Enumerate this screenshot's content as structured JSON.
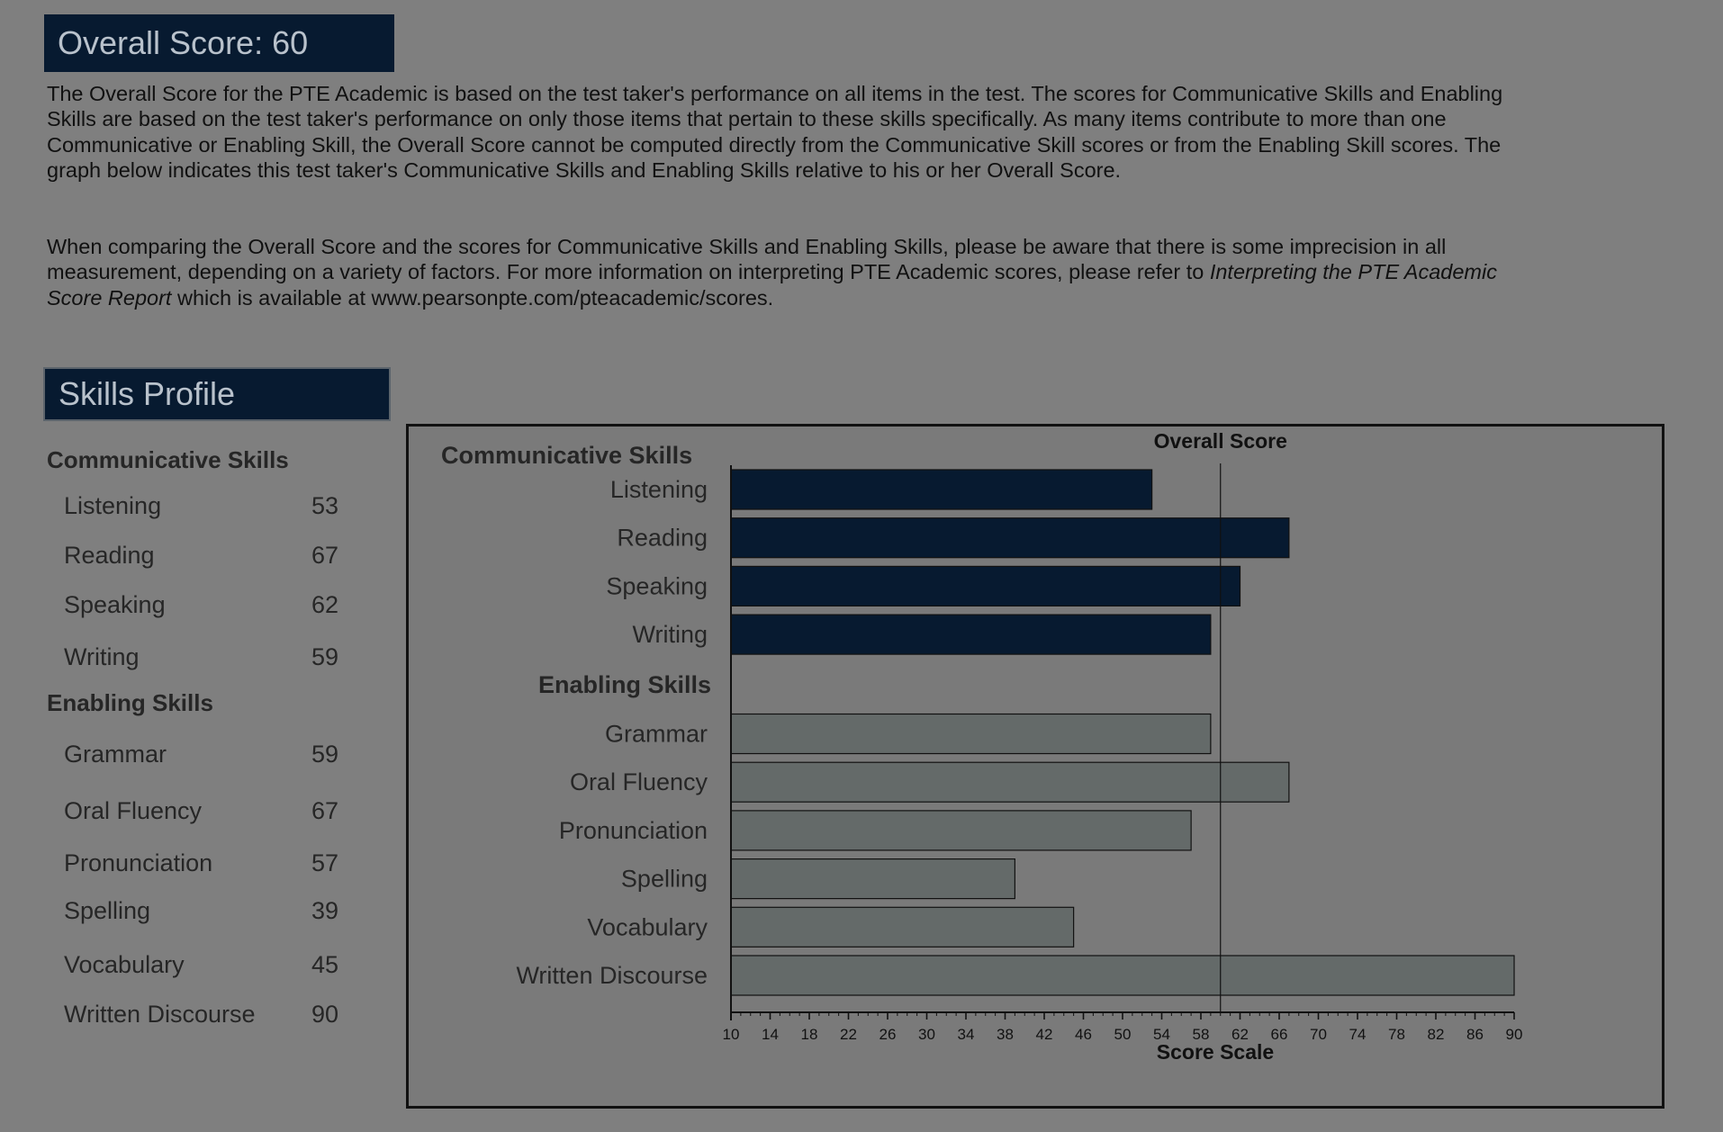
{
  "overall": {
    "title": "Overall Score:  60",
    "para1": "The Overall Score for the PTE Academic is based on the test taker's performance on all items in the test.  The scores for Communicative Skills and Enabling Skills are based on the test taker's performance on only those items that pertain to these skills specifically.  As many items contribute to more than one Communicative or Enabling Skill, the Overall Score cannot be computed directly from the Communicative Skill scores or from the Enabling Skill scores.  The graph below indicates this test taker's Communicative Skills and Enabling Skills relative to his or her Overall Score.",
    "para2_a": "When comparing the Overall Score and the scores for Communicative Skills and Enabling Skills, please be aware that there is some imprecision in all measurement, depending on a variety of factors.  For more information on interpreting PTE Academic scores, please refer to ",
    "para2_italic": "Interpreting the PTE Academic Score Report",
    "para2_b": " which is available at www.pearsonpte.com/pteacademic/scores."
  },
  "skills_profile": {
    "title": "Skills Profile",
    "communicative_heading": "Communicative Skills",
    "communicative": [
      {
        "name": "Listening",
        "score": "53"
      },
      {
        "name": "Reading",
        "score": "67"
      },
      {
        "name": "Speaking",
        "score": "62"
      },
      {
        "name": "Writing",
        "score": "59"
      }
    ],
    "enabling_heading": "Enabling Skills",
    "enabling": [
      {
        "name": "Grammar",
        "score": "59"
      },
      {
        "name": "Oral Fluency",
        "score": "67"
      },
      {
        "name": "Pronunciation",
        "score": "57"
      },
      {
        "name": "Spelling",
        "score": "39"
      },
      {
        "name": "Vocabulary",
        "score": "45"
      },
      {
        "name": "Written Discourse",
        "score": "90"
      }
    ]
  },
  "chart_data": {
    "type": "bar",
    "orientation": "horizontal",
    "xlabel": "Score Scale",
    "reference_line": {
      "label": "Overall Score",
      "value": 60
    },
    "xlim": [
      10,
      90
    ],
    "xticks": [
      10,
      14,
      18,
      22,
      26,
      30,
      34,
      38,
      42,
      46,
      50,
      54,
      58,
      62,
      66,
      70,
      74,
      78,
      82,
      86,
      90
    ],
    "groups": [
      {
        "name": "Communicative Skills",
        "color": "#071a30",
        "categories": [
          "Listening",
          "Reading",
          "Speaking",
          "Writing"
        ],
        "values": [
          53,
          67,
          62,
          59
        ]
      },
      {
        "name": "Enabling Skills",
        "color": "#646a69",
        "categories": [
          "Grammar",
          "Oral Fluency",
          "Pronunciation",
          "Spelling",
          "Vocabulary",
          "Written Discourse"
        ],
        "values": [
          59,
          67,
          57,
          39,
          45,
          90
        ]
      }
    ]
  }
}
